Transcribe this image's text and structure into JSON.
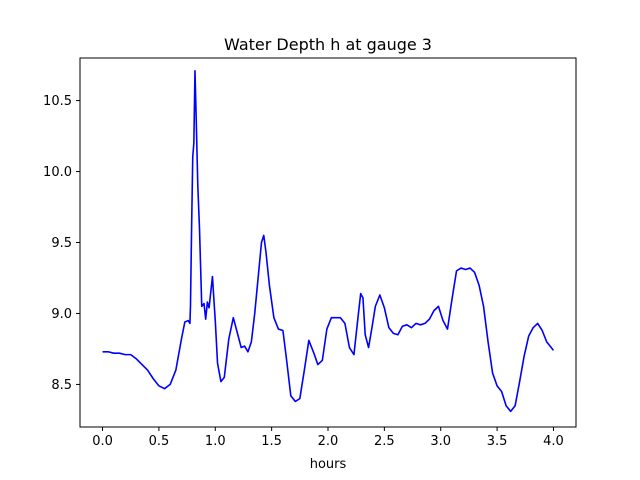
{
  "chart_data": {
    "type": "line",
    "title": "Water Depth h at gauge 3",
    "xlabel": "hours",
    "ylabel": "",
    "xlim": [
      -0.2,
      4.2
    ],
    "ylim": [
      8.2,
      10.8
    ],
    "xticks": [
      0.0,
      0.5,
      1.0,
      1.5,
      2.0,
      2.5,
      3.0,
      3.5,
      4.0
    ],
    "xtick_labels": [
      "0.0",
      "0.5",
      "1.0",
      "1.5",
      "2.0",
      "2.5",
      "3.0",
      "3.5",
      "4.0"
    ],
    "yticks": [
      8.5,
      9.0,
      9.5,
      10.0,
      10.5
    ],
    "ytick_labels": [
      "8.5",
      "9.0",
      "9.5",
      "10.0",
      "10.5"
    ],
    "grid": false,
    "color": "#0000ff",
    "series": [
      {
        "x": [
          0.0,
          0.05,
          0.1,
          0.15,
          0.2,
          0.25,
          0.3,
          0.35,
          0.4,
          0.45,
          0.5,
          0.55,
          0.6,
          0.65,
          0.7,
          0.73,
          0.76,
          0.775,
          0.78,
          0.79,
          0.8,
          0.81,
          0.82,
          0.83,
          0.845,
          0.86,
          0.88,
          0.9,
          0.915,
          0.93,
          0.945,
          0.96,
          0.975,
          0.99,
          1.0,
          1.02,
          1.05,
          1.08,
          1.12,
          1.16,
          1.2,
          1.23,
          1.26,
          1.29,
          1.32,
          1.35,
          1.38,
          1.41,
          1.43,
          1.45,
          1.48,
          1.52,
          1.56,
          1.6,
          1.63,
          1.67,
          1.71,
          1.75,
          1.79,
          1.83,
          1.87,
          1.91,
          1.95,
          1.99,
          2.03,
          2.07,
          2.11,
          2.15,
          2.19,
          2.23,
          2.27,
          2.29,
          2.31,
          2.33,
          2.36,
          2.39,
          2.42,
          2.46,
          2.5,
          2.54,
          2.58,
          2.62,
          2.66,
          2.7,
          2.74,
          2.78,
          2.82,
          2.86,
          2.9,
          2.94,
          2.98,
          3.02,
          3.06,
          3.1,
          3.14,
          3.18,
          3.22,
          3.26,
          3.3,
          3.34,
          3.38,
          3.42,
          3.46,
          3.5,
          3.54,
          3.58,
          3.62,
          3.66,
          3.7,
          3.74,
          3.78,
          3.82,
          3.86,
          3.9,
          3.94,
          3.98,
          4.0
        ],
        "y": [
          8.73,
          8.73,
          8.72,
          8.72,
          8.71,
          8.71,
          8.68,
          8.64,
          8.6,
          8.54,
          8.49,
          8.47,
          8.5,
          8.6,
          8.82,
          8.94,
          8.95,
          8.93,
          9.05,
          9.6,
          10.1,
          10.2,
          10.71,
          10.4,
          9.9,
          9.6,
          9.05,
          9.07,
          8.96,
          9.08,
          9.04,
          9.15,
          9.26,
          9.07,
          8.95,
          8.65,
          8.52,
          8.55,
          8.82,
          8.97,
          8.85,
          8.76,
          8.77,
          8.73,
          8.8,
          9.0,
          9.25,
          9.5,
          9.55,
          9.43,
          9.2,
          8.97,
          8.89,
          8.88,
          8.69,
          8.42,
          8.38,
          8.4,
          8.6,
          8.81,
          8.73,
          8.64,
          8.67,
          8.89,
          8.97,
          8.97,
          8.97,
          8.93,
          8.76,
          8.71,
          9.0,
          9.14,
          9.11,
          8.85,
          8.76,
          8.9,
          9.05,
          9.13,
          9.04,
          8.9,
          8.86,
          8.85,
          8.91,
          8.92,
          8.9,
          8.93,
          8.92,
          8.93,
          8.96,
          9.02,
          9.05,
          8.95,
          8.89,
          9.1,
          9.3,
          9.32,
          9.31,
          9.32,
          9.29,
          9.2,
          9.05,
          8.8,
          8.58,
          8.49,
          8.45,
          8.35,
          8.31,
          8.35,
          8.52,
          8.7,
          8.84,
          8.9,
          8.93,
          8.88,
          8.8,
          8.76,
          8.74
        ]
      }
    ]
  }
}
